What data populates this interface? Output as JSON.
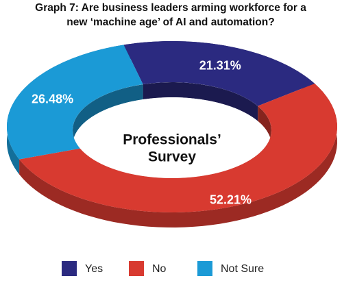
{
  "chart_data": {
    "type": "donut3d",
    "title": [
      "Graph 7: Are business leaders arming workforce for a",
      "new ‘machine age’ of AI and automation?"
    ],
    "center_label": [
      "Professionals’",
      "Survey"
    ],
    "categories": [
      "Yes",
      "No",
      "Not Sure"
    ],
    "values": [
      21.31,
      52.21,
      26.48
    ],
    "value_labels": [
      "21.31%",
      "52.21%",
      "26.48%"
    ],
    "colors": [
      "#2b2a80",
      "#d83a30",
      "#1b9ad6"
    ],
    "legend": "bottom"
  }
}
